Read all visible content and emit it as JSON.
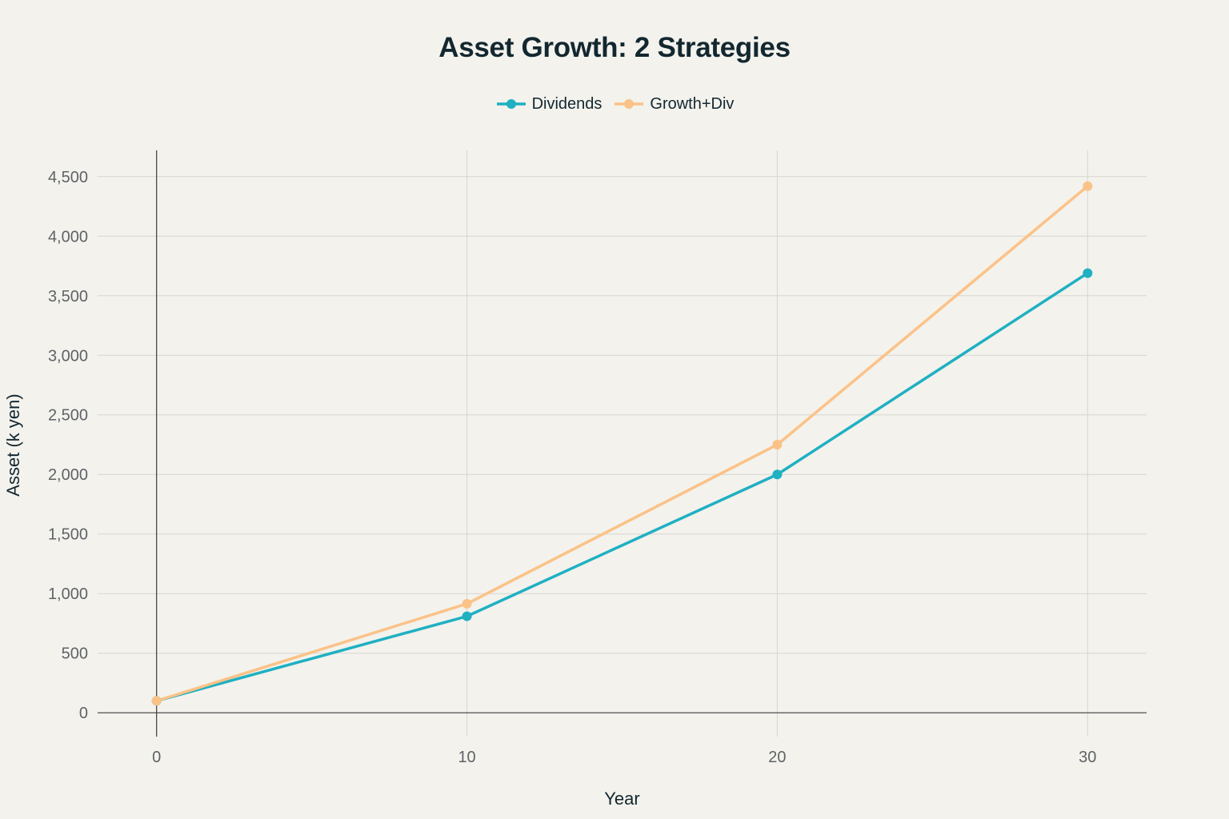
{
  "chart_data": {
    "type": "line",
    "title": "Asset Growth: 2 Strategies",
    "xlabel": "Year",
    "ylabel": "Asset (k yen)",
    "x": [
      0,
      10,
      20,
      30
    ],
    "xticks": [
      "0",
      "10",
      "20",
      "30"
    ],
    "yticks": [
      "0",
      "500",
      "1,000",
      "1,500",
      "2,000",
      "2,500",
      "3,000",
      "3,500",
      "4,000",
      "4,500"
    ],
    "xlim": [
      -1.9,
      31.9
    ],
    "ylim": [
      -200,
      4720
    ],
    "grid": true,
    "legend_position": "top-center",
    "series": [
      {
        "name": "Dividends",
        "color": "#1fb0c2",
        "values": [
          100,
          810,
          2000,
          3690
        ]
      },
      {
        "name": "Growth+Div",
        "color": "#fbc287",
        "values": [
          100,
          915,
          2250,
          4420
        ]
      }
    ]
  }
}
